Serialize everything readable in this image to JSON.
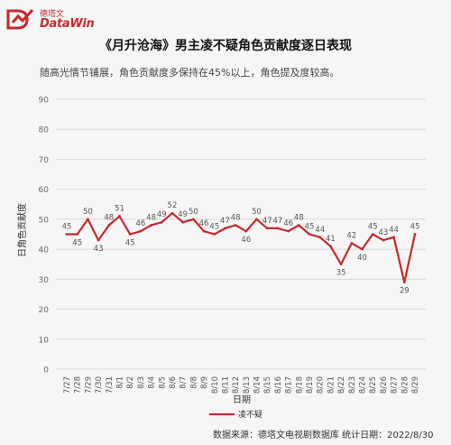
{
  "header": {
    "logo_cn": "德塔文",
    "logo_en": "DataWin",
    "title": "《月升沧海》男主凌不疑角色贡献度逐日表现",
    "subtitle": "随高光情节铺展，角色贡献度多保持在45%以上，角色提及度较高。"
  },
  "footer": {
    "source": "数据来源：德塔文电视剧数据库  统计日期：2022/8/30"
  },
  "colors": {
    "line": "#c8282c",
    "brand": "#c8282c",
    "grid": "#d8d8d8"
  },
  "chart_data": {
    "type": "line",
    "xlabel": "日期",
    "ylabel": "日角色贡献度",
    "ylim": [
      0,
      90
    ],
    "yticks": [
      0,
      10,
      20,
      30,
      40,
      50,
      60,
      70,
      80,
      90
    ],
    "grid": true,
    "legend_position": "bottom-center",
    "categories": [
      "7/27",
      "7/28",
      "7/29",
      "7/30",
      "7/31",
      "8/1",
      "8/2",
      "8/3",
      "8/4",
      "8/5",
      "8/6",
      "8/7",
      "8/8",
      "8/9",
      "8/10",
      "8/11",
      "8/12",
      "8/13",
      "8/14",
      "8/15",
      "8/16",
      "8/17",
      "8/18",
      "8/19",
      "8/20",
      "8/21",
      "8/22",
      "8/23",
      "8/24",
      "8/25",
      "8/26",
      "8/27",
      "8/28",
      "8/29"
    ],
    "series": [
      {
        "name": "凌不疑",
        "values": [
          45,
          45,
          50,
          43,
          48,
          51,
          45,
          46,
          48,
          49,
          52,
          49,
          50,
          46,
          45,
          47,
          48,
          46,
          50,
          47,
          47,
          46,
          48,
          45,
          44,
          41,
          35,
          42,
          40,
          45,
          43,
          44,
          29,
          45
        ]
      }
    ],
    "data_labels": [
      "45",
      "45",
      "50",
      "43",
      "48",
      "51",
      "45",
      "46",
      "48",
      "49",
      "52",
      "49",
      "50",
      "46",
      "45",
      "47",
      "48",
      "46",
      "50",
      "47",
      "47",
      "46",
      "48",
      "45",
      "44",
      "41",
      "35",
      "42",
      "40",
      "45",
      "43",
      "44",
      "29",
      "45"
    ]
  }
}
